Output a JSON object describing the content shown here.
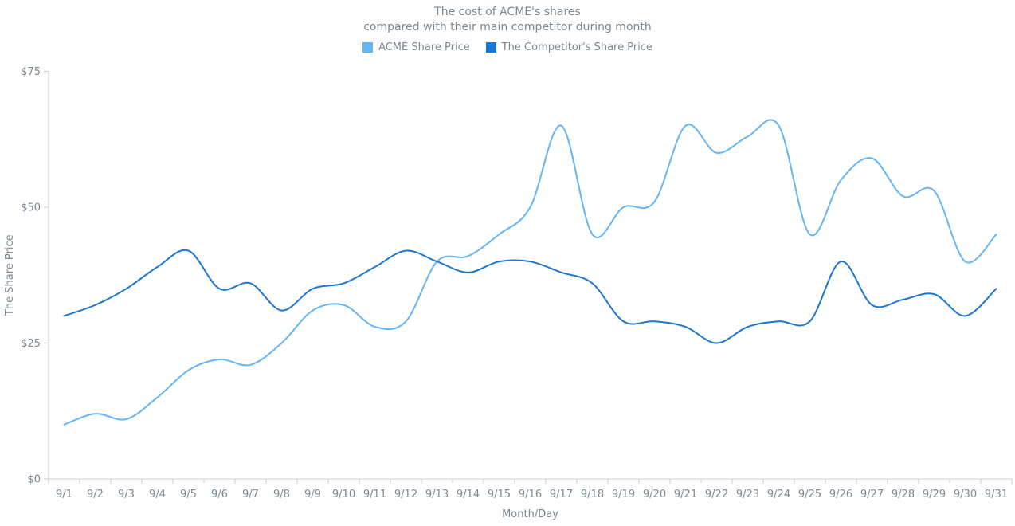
{
  "title": {
    "line1": "The cost of ACME's shares",
    "line2": "compared with their main competitor during month"
  },
  "legend": {
    "items": [
      {
        "id": "acme",
        "label": "ACME Share Price",
        "color": "#64b5f6"
      },
      {
        "id": "competitor",
        "label": "The Competitor's Share Price",
        "color": "#1976d2"
      }
    ]
  },
  "axes": {
    "y": {
      "title": "The Share Price",
      "ticks": [
        {
          "value": 0,
          "label": "$0"
        },
        {
          "value": 25,
          "label": "$25"
        },
        {
          "value": 50,
          "label": "$50"
        },
        {
          "value": 75,
          "label": "$75"
        }
      ],
      "range": [
        0,
        75
      ]
    },
    "x": {
      "title": "Month/Day"
    }
  },
  "chart_data": {
    "type": "line",
    "line_style": "spline",
    "title": "The cost of ACME's shares compared with their main competitor during month",
    "xlabel": "Month/Day",
    "ylabel": "The Share Price",
    "ylim": [
      0,
      75
    ],
    "grid": false,
    "legend_position": "top",
    "categories": [
      "9/1",
      "9/2",
      "9/3",
      "9/4",
      "9/5",
      "9/6",
      "9/7",
      "9/8",
      "9/9",
      "9/10",
      "9/11",
      "9/12",
      "9/13",
      "9/14",
      "9/15",
      "9/16",
      "9/17",
      "9/18",
      "9/19",
      "9/20",
      "9/21",
      "9/22",
      "9/23",
      "9/24",
      "9/25",
      "9/26",
      "9/27",
      "9/28",
      "9/29",
      "9/30",
      "9/31"
    ],
    "series": [
      {
        "name": "ACME Share Price",
        "color": "#64b5f6",
        "values": [
          10,
          12,
          11,
          15,
          20,
          22,
          21,
          25,
          31,
          32,
          28,
          29,
          40,
          41,
          45,
          50,
          65,
          45,
          50,
          51,
          65,
          60,
          63,
          65,
          45,
          55,
          59,
          52,
          53,
          40,
          45
        ]
      },
      {
        "name": "The Competitor's Share Price",
        "color": "#1976d2",
        "values": [
          30,
          32,
          35,
          39,
          42,
          35,
          36,
          31,
          35,
          36,
          39,
          42,
          40,
          38,
          40,
          40,
          38,
          36,
          29,
          29,
          28,
          25,
          28,
          29,
          29,
          40,
          32,
          33,
          34,
          30,
          35
        ]
      }
    ]
  },
  "colors": {
    "text": "#7c868e",
    "axis_line": "#cecece",
    "background": "#ffffff"
  }
}
